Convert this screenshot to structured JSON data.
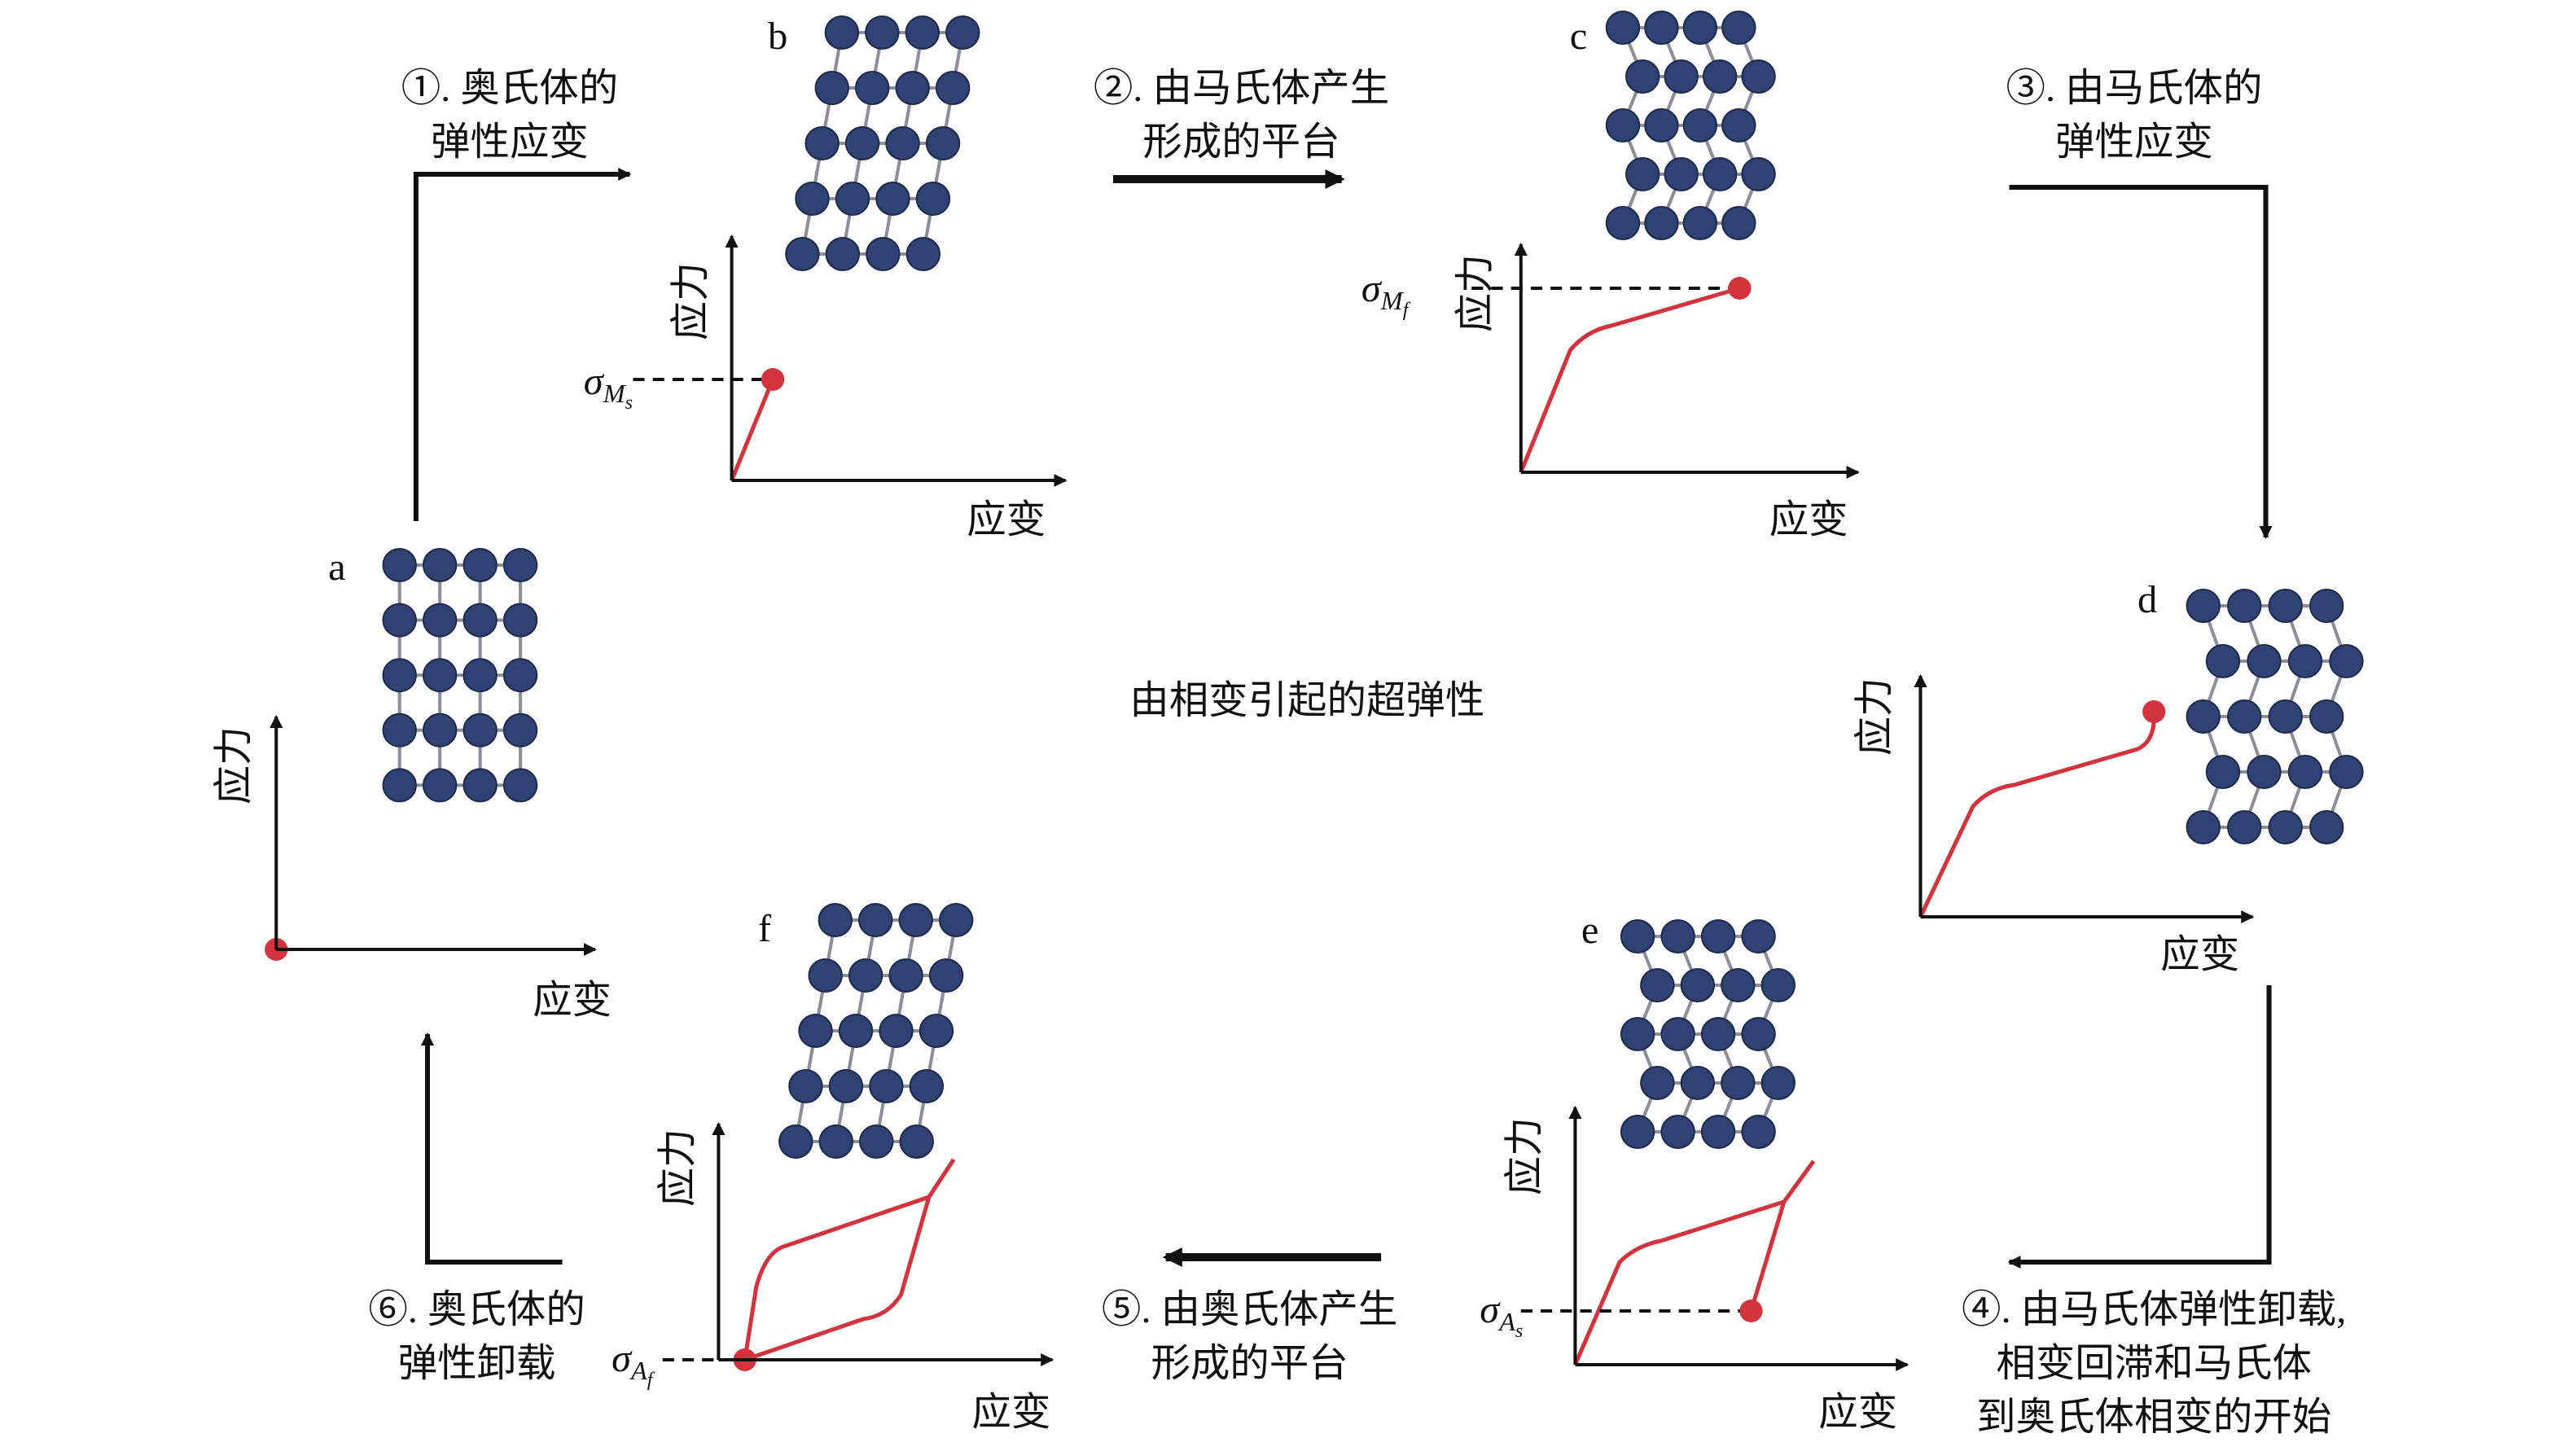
{
  "title": "由相变引起的超弹性",
  "panels": [
    {
      "label": "a",
      "y_axis": "应力",
      "x_axis": "应变"
    },
    {
      "label": "b",
      "y_axis": "应力",
      "x_axis": "应变",
      "sigma": {
        "base": "σ",
        "sub": "M",
        "subsub": "s"
      }
    },
    {
      "label": "c",
      "y_axis": "应力",
      "x_axis": "应变",
      "sigma": {
        "base": "σ",
        "sub": "M",
        "subsub": "f"
      }
    },
    {
      "label": "d",
      "y_axis": "应力",
      "x_axis": "应变"
    },
    {
      "label": "e",
      "y_axis": "应力",
      "x_axis": "应变",
      "sigma": {
        "base": "σ",
        "sub": "A",
        "subsub": "s"
      }
    },
    {
      "label": "f",
      "y_axis": "应力",
      "x_axis": "应变",
      "sigma": {
        "base": "σ",
        "sub": "A",
        "subsub": "f"
      }
    }
  ],
  "steps": [
    {
      "lines": [
        "①. 奥氏体的",
        "弹性应变"
      ]
    },
    {
      "lines": [
        "②. 由马氏体产生",
        "形成的平台"
      ]
    },
    {
      "lines": [
        "③. 由马氏体的",
        "弹性应变"
      ]
    },
    {
      "lines": [
        "④. 由马氏体弹性卸载,",
        "相变回滞和马氏体",
        "到奥氏体相变的开始"
      ]
    },
    {
      "lines": [
        "⑤. 由奥氏体产生",
        "形成的平台"
      ]
    },
    {
      "lines": [
        "⑥. 奥氏体的",
        "弹性卸载"
      ]
    }
  ]
}
